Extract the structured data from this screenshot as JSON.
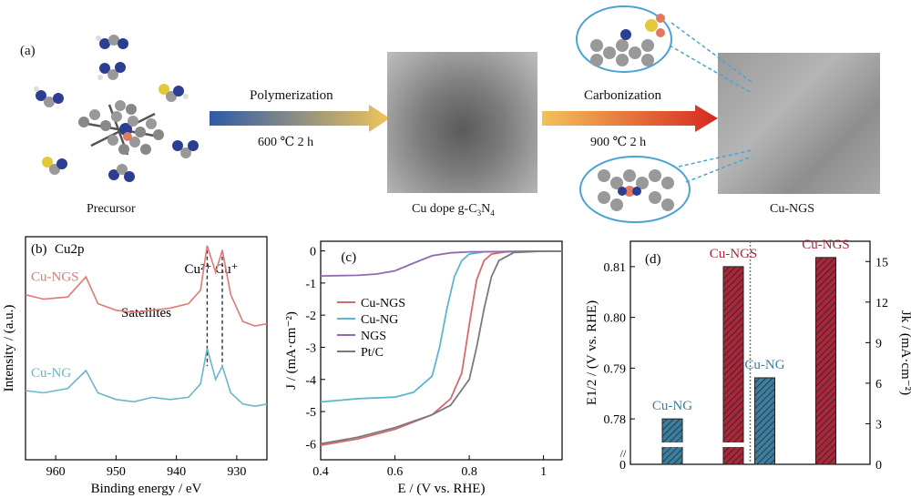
{
  "panel_a": {
    "label": "(a)",
    "step1": {
      "label": "Polymerization",
      "condition": "600 ℃  2 h"
    },
    "step2": {
      "label": "Carbonization",
      "condition": "900 ℃  2 h"
    },
    "captions": {
      "precursor": "Precursor",
      "intermediate_pre": "Cu dope g-C",
      "intermediate_sub1": "3",
      "intermediate_mid": "N",
      "intermediate_sub2": "4",
      "product": "Cu-NGS"
    }
  },
  "chart_data": [
    {
      "panel": "(b)",
      "type": "line",
      "title": "Cu2p",
      "xlabel": "Binding energy / eV",
      "ylabel": "Intensity / (a.u.)",
      "xlim": [
        965,
        925
      ],
      "x_ticks": [
        960,
        950,
        940,
        930
      ],
      "annotations": [
        "Cu²⁺ Cu⁺",
        "Satellites"
      ],
      "peaks": {
        "Cu2+": 934.9,
        "Cu+": 932.4
      },
      "series": [
        {
          "name": "Cu-NGS",
          "color": "#e07a73",
          "x": [
            965,
            962,
            958,
            955,
            953,
            950,
            947,
            944,
            941,
            938,
            936,
            934.9,
            933.5,
            932.4,
            931,
            929,
            927,
            925
          ],
          "y": [
            0.74,
            0.72,
            0.73,
            0.82,
            0.7,
            0.67,
            0.66,
            0.67,
            0.68,
            0.7,
            0.76,
            0.96,
            0.84,
            0.94,
            0.74,
            0.62,
            0.6,
            0.61
          ]
        },
        {
          "name": "Cu-NG",
          "color": "#6ab7cc",
          "x": [
            965,
            962,
            958,
            955,
            953,
            950,
            947,
            944,
            941,
            938,
            936,
            934.9,
            933.5,
            932.4,
            931,
            929,
            927,
            925
          ],
          "y": [
            0.31,
            0.3,
            0.32,
            0.4,
            0.3,
            0.27,
            0.26,
            0.28,
            0.27,
            0.28,
            0.34,
            0.5,
            0.36,
            0.42,
            0.3,
            0.25,
            0.24,
            0.25
          ]
        }
      ]
    },
    {
      "panel": "(c)",
      "type": "line",
      "xlabel": "E / (V vs. RHE)",
      "ylabel": "J / (mA·cm⁻²)",
      "xlim": [
        0.4,
        1.05
      ],
      "ylim": [
        -6.5,
        0.3
      ],
      "x_ticks": [
        0.4,
        0.6,
        0.8,
        1.0
      ],
      "y_ticks": [
        0,
        -1,
        -2,
        -3,
        -4,
        -5,
        -6
      ],
      "legend_position": "center-left",
      "series": [
        {
          "name": "Cu-NGS",
          "color": "#d66b6b",
          "x": [
            0.4,
            0.5,
            0.6,
            0.7,
            0.75,
            0.78,
            0.8,
            0.82,
            0.84,
            0.86,
            0.9,
            1.0,
            1.05
          ],
          "y": [
            -6.05,
            -5.85,
            -5.55,
            -5.1,
            -4.6,
            -3.8,
            -2.3,
            -0.9,
            -0.3,
            -0.1,
            -0.03,
            -0.01,
            -0.01
          ]
        },
        {
          "name": "Cu-NG",
          "color": "#5db6cf",
          "x": [
            0.4,
            0.5,
            0.6,
            0.65,
            0.7,
            0.72,
            0.74,
            0.76,
            0.78,
            0.8,
            0.84,
            0.9,
            1.0,
            1.05
          ],
          "y": [
            -4.7,
            -4.6,
            -4.55,
            -4.4,
            -3.9,
            -3.0,
            -1.8,
            -0.8,
            -0.3,
            -0.1,
            -0.03,
            -0.02,
            -0.01,
            -0.01
          ]
        },
        {
          "name": "NGS",
          "color": "#8f6cae",
          "x": [
            0.4,
            0.5,
            0.55,
            0.6,
            0.65,
            0.7,
            0.75,
            0.8,
            0.9,
            1.0,
            1.05
          ],
          "y": [
            -0.78,
            -0.76,
            -0.72,
            -0.62,
            -0.38,
            -0.15,
            -0.06,
            -0.03,
            -0.02,
            -0.01,
            -0.01
          ]
        },
        {
          "name": "Pt/C",
          "color": "#7a7a7a",
          "x": [
            0.4,
            0.5,
            0.6,
            0.7,
            0.75,
            0.8,
            0.82,
            0.84,
            0.86,
            0.88,
            0.92,
            1.0,
            1.05
          ],
          "y": [
            -6.0,
            -5.8,
            -5.5,
            -5.1,
            -4.8,
            -4.0,
            -3.0,
            -1.8,
            -0.8,
            -0.3,
            -0.05,
            -0.01,
            -0.01
          ]
        }
      ]
    },
    {
      "panel": "(d)",
      "type": "bar",
      "y_left_label": "E1/2 / (V vs. RHE)",
      "y_right_label": "Jk / (mA·cm⁻²)",
      "y_left_ticks": [
        "0",
        "0.78",
        "0.79",
        "0.80",
        "0.81"
      ],
      "y_right_ticks": [
        0,
        3,
        6,
        9,
        12,
        15
      ],
      "ylim_left_broken": [
        0.775,
        0.815
      ],
      "ylim_right": [
        0,
        16.5
      ],
      "groups": [
        {
          "axis": "left",
          "categories": [
            "Cu-NG",
            "Cu-NGS"
          ],
          "values": [
            0.78,
            0.81
          ],
          "colors": [
            "#3d7d9e",
            "#a8283b"
          ]
        },
        {
          "axis": "right",
          "categories": [
            "Cu-NG",
            "Cu-NGS"
          ],
          "values": [
            6.4,
            15.3
          ],
          "colors": [
            "#3d7d9e",
            "#a8283b"
          ]
        }
      ]
    }
  ]
}
